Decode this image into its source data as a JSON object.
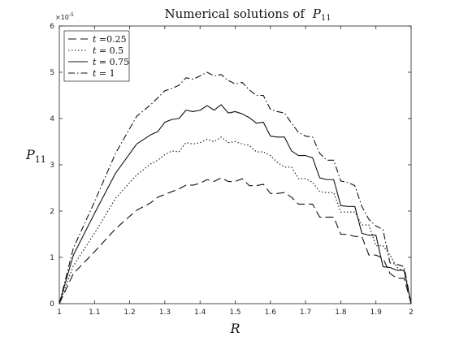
{
  "chart_data": {
    "type": "line",
    "title": "Numerical solutions of",
    "title_symbol": "P",
    "title_sub": "11",
    "xlabel": "R",
    "ylabel_symbol": "P",
    "ylabel_sub": "11",
    "xlim": [
      1,
      2
    ],
    "ylim": [
      0,
      6
    ],
    "x_ticks": [
      1,
      1.1,
      1.2,
      1.3,
      1.4,
      1.5,
      1.6,
      1.7,
      1.8,
      1.9,
      2
    ],
    "x_tick_labels": [
      "1",
      "1.1",
      "1.2",
      "1.3",
      "1.4",
      "1.5",
      "1.6",
      "1.7",
      "1.8",
      "1.9",
      "2"
    ],
    "y_ticks": [
      0,
      1,
      2,
      3,
      4,
      5,
      6
    ],
    "y_tick_labels": [
      "0",
      "1",
      "2",
      "3",
      "4",
      "5",
      "6"
    ],
    "y_exponent": "×10",
    "y_exponent_power": "-5",
    "grid": false,
    "legend_position": "top-left",
    "x": [
      1.0,
      1.04,
      1.1,
      1.16,
      1.22,
      1.26,
      1.28,
      1.3,
      1.32,
      1.34,
      1.36,
      1.38,
      1.4,
      1.42,
      1.44,
      1.46,
      1.48,
      1.5,
      1.52,
      1.54,
      1.56,
      1.58,
      1.6,
      1.62,
      1.64,
      1.66,
      1.68,
      1.7,
      1.72,
      1.74,
      1.76,
      1.78,
      1.8,
      1.82,
      1.84,
      1.86,
      1.88,
      1.9,
      1.92,
      1.94,
      1.96,
      1.98,
      2.0
    ],
    "series": [
      {
        "label_var": "t",
        "label_val": " =0.25",
        "dash": "10,5",
        "values": [
          0.0,
          0.65,
          1.12,
          1.62,
          2.02,
          2.18,
          2.3,
          2.36,
          2.42,
          2.48,
          2.56,
          2.56,
          2.6,
          2.68,
          2.64,
          2.72,
          2.64,
          2.64,
          2.7,
          2.55,
          2.55,
          2.58,
          2.38,
          2.38,
          2.4,
          2.3,
          2.15,
          2.15,
          2.15,
          1.87,
          1.87,
          1.87,
          1.5,
          1.5,
          1.45,
          1.45,
          1.05,
          1.05,
          0.98,
          0.65,
          0.55,
          0.55,
          0.0
        ]
      },
      {
        "label_var": "t",
        "label_val": " = 0.5",
        "dash": "1.5,2.5",
        "values": [
          0.0,
          0.82,
          1.52,
          2.28,
          2.78,
          3.02,
          3.1,
          3.22,
          3.3,
          3.28,
          3.48,
          3.45,
          3.48,
          3.55,
          3.5,
          3.6,
          3.48,
          3.5,
          3.45,
          3.42,
          3.28,
          3.28,
          3.2,
          3.05,
          2.95,
          2.95,
          2.7,
          2.7,
          2.62,
          2.42,
          2.4,
          2.4,
          1.98,
          1.98,
          1.98,
          1.7,
          1.7,
          1.25,
          1.25,
          1.05,
          0.78,
          0.7,
          0.0
        ]
      },
      {
        "label_var": "t",
        "label_val": " = 0.75",
        "dash": "",
        "values": [
          0.0,
          1.05,
          1.95,
          2.82,
          3.45,
          3.65,
          3.72,
          3.92,
          3.98,
          4.0,
          4.18,
          4.15,
          4.18,
          4.28,
          4.18,
          4.3,
          4.12,
          4.15,
          4.1,
          4.02,
          3.9,
          3.92,
          3.62,
          3.6,
          3.6,
          3.3,
          3.2,
          3.2,
          3.15,
          2.72,
          2.68,
          2.68,
          2.12,
          2.1,
          2.1,
          1.52,
          1.48,
          1.48,
          0.8,
          0.78,
          0.72,
          0.72,
          0.0
        ]
      },
      {
        "label_var": "t",
        "label_val": " = 1",
        "dash": "8,3,1.5,3",
        "values": [
          0.0,
          1.2,
          2.2,
          3.25,
          4.05,
          4.3,
          4.45,
          4.6,
          4.65,
          4.72,
          4.88,
          4.85,
          4.92,
          5.0,
          4.92,
          4.95,
          4.82,
          4.75,
          4.78,
          4.62,
          4.5,
          4.5,
          4.2,
          4.15,
          4.12,
          3.9,
          3.7,
          3.62,
          3.6,
          3.25,
          3.1,
          3.1,
          2.65,
          2.62,
          2.55,
          2.1,
          1.82,
          1.68,
          1.6,
          0.88,
          0.85,
          0.8,
          0.0
        ]
      }
    ]
  }
}
